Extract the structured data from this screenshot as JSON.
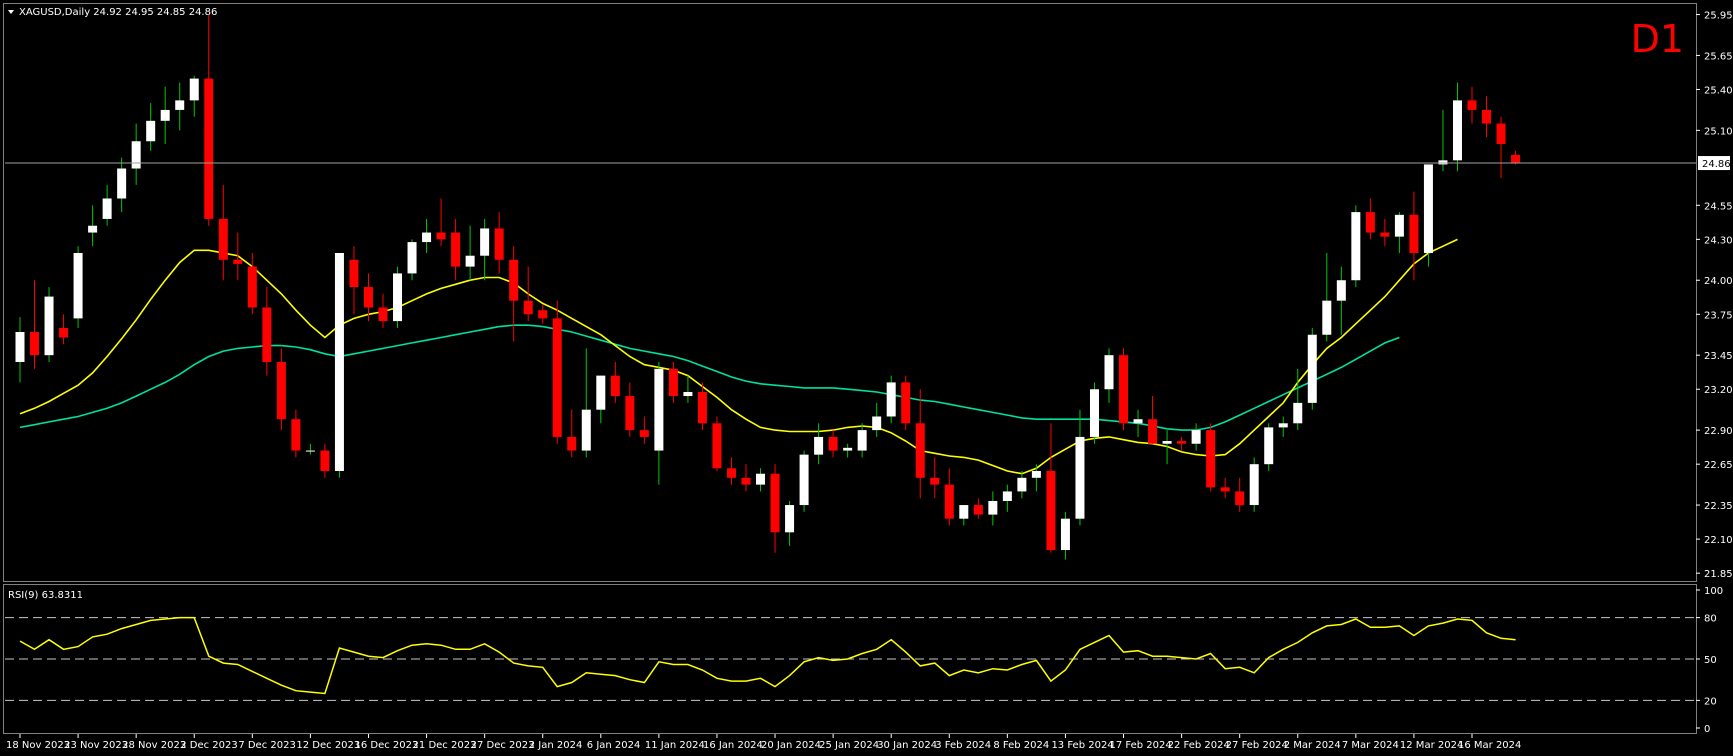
{
  "header": {
    "symbol_line": "XAGUSD,Daily  24.92 24.95 24.85 24.86",
    "timeframe": "D1"
  },
  "price_axis": {
    "ticks": [
      "25.95",
      "25.65",
      "25.40",
      "25.10",
      "24.55",
      "24.30",
      "24.00",
      "23.75",
      "23.45",
      "23.20",
      "22.90",
      "22.65",
      "22.35",
      "22.10",
      "21.85"
    ],
    "tick_values": [
      25.95,
      25.65,
      25.4,
      25.1,
      24.55,
      24.3,
      24.0,
      23.75,
      23.45,
      23.2,
      22.9,
      22.65,
      22.35,
      22.1,
      21.85
    ],
    "current_price": "24.86",
    "current_value": 24.86,
    "range": [
      21.8,
      26.02
    ]
  },
  "rsi": {
    "label": "RSI(9) 63.8311",
    "ticks": [
      "100",
      "80",
      "50",
      "20",
      "0"
    ],
    "tick_values": [
      100,
      80,
      50,
      20,
      0
    ],
    "levels": [
      80,
      50,
      20
    ]
  },
  "time_axis": {
    "labels": [
      "18 Nov 2023",
      "23 Nov 2023",
      "28 Nov 2023",
      "2 Dec 2023",
      "7 Dec 2023",
      "12 Dec 2023",
      "16 Dec 2023",
      "21 Dec 2023",
      "27 Dec 2023",
      "2 Jan 2024",
      "6 Jan 2024",
      "11 Jan 2024",
      "16 Jan 2024",
      "20 Jan 2024",
      "25 Jan 2024",
      "30 Jan 2024",
      "3 Feb 2024",
      "8 Feb 2024",
      "13 Feb 2024",
      "17 Feb 2024",
      "22 Feb 2024",
      "27 Feb 2024",
      "2 Mar 2024",
      "7 Mar 2024",
      "12 Mar 2024",
      "16 Mar 2024"
    ],
    "label_bar_index": [
      0,
      4,
      8,
      12,
      16,
      20,
      24,
      28,
      32,
      36,
      40,
      44,
      48,
      52,
      56,
      60,
      64,
      68,
      72,
      76,
      80,
      84,
      88,
      92,
      96,
      100
    ]
  },
  "colors": {
    "background": "#000000",
    "bull_candle": "#ffffff",
    "bear_candle": "#ff0000",
    "bull_wick": "#00c800",
    "bear_wick": "#ff0000",
    "ma_fast": "#ffff00",
    "ma_slow": "#00e0a0",
    "rsi_line": "#ffff00",
    "grid_dash": "#c8c8c8",
    "axis_text": "#ffffff",
    "timeframe_label": "#ff0000",
    "separator": "#808080"
  },
  "chart_data": {
    "type": "candlestick",
    "ohlc": [
      [
        23.4,
        23.73,
        23.25,
        23.62
      ],
      [
        23.62,
        24.0,
        23.35,
        23.45
      ],
      [
        23.45,
        23.95,
        23.4,
        23.88
      ],
      [
        23.65,
        23.75,
        23.53,
        23.58
      ],
      [
        23.72,
        24.25,
        23.65,
        24.2
      ],
      [
        24.35,
        24.55,
        24.25,
        24.4
      ],
      [
        24.45,
        24.7,
        24.4,
        24.6
      ],
      [
        24.6,
        24.9,
        24.5,
        24.82
      ],
      [
        24.82,
        25.15,
        24.7,
        25.02
      ],
      [
        25.02,
        25.3,
        24.95,
        25.17
      ],
      [
        25.17,
        25.42,
        25.0,
        25.25
      ],
      [
        25.25,
        25.45,
        25.1,
        25.32
      ],
      [
        25.32,
        25.5,
        25.2,
        25.48
      ],
      [
        25.48,
        25.95,
        24.4,
        24.45
      ],
      [
        24.45,
        24.7,
        24.0,
        24.15
      ],
      [
        24.15,
        24.35,
        24.0,
        24.12
      ],
      [
        24.1,
        24.2,
        23.75,
        23.8
      ],
      [
        23.8,
        23.95,
        23.3,
        23.4
      ],
      [
        23.4,
        23.5,
        22.9,
        22.98
      ],
      [
        22.98,
        23.05,
        22.7,
        22.75
      ],
      [
        22.75,
        22.8,
        22.72,
        22.75
      ],
      [
        22.75,
        22.8,
        22.55,
        22.6
      ],
      [
        22.6,
        24.2,
        22.55,
        24.2
      ],
      [
        24.15,
        24.25,
        23.75,
        23.95
      ],
      [
        23.95,
        24.05,
        23.7,
        23.8
      ],
      [
        23.8,
        23.9,
        23.65,
        23.7
      ],
      [
        23.7,
        24.1,
        23.65,
        24.05
      ],
      [
        24.05,
        24.3,
        24.0,
        24.28
      ],
      [
        24.28,
        24.45,
        24.2,
        24.35
      ],
      [
        24.35,
        24.6,
        24.25,
        24.3
      ],
      [
        24.35,
        24.45,
        24.0,
        24.1
      ],
      [
        24.1,
        24.4,
        24.0,
        24.18
      ],
      [
        24.18,
        24.45,
        24.0,
        24.38
      ],
      [
        24.38,
        24.5,
        24.05,
        24.15
      ],
      [
        24.15,
        24.25,
        23.55,
        23.85
      ],
      [
        23.85,
        24.1,
        23.7,
        23.75
      ],
      [
        23.78,
        23.82,
        23.68,
        23.72
      ],
      [
        23.72,
        23.85,
        22.8,
        22.85
      ],
      [
        22.85,
        23.05,
        22.7,
        22.75
      ],
      [
        22.75,
        23.5,
        22.7,
        23.05
      ],
      [
        23.05,
        23.3,
        22.95,
        23.3
      ],
      [
        23.3,
        23.4,
        23.1,
        23.15
      ],
      [
        23.15,
        23.25,
        22.85,
        22.9
      ],
      [
        22.9,
        23.0,
        22.8,
        22.85
      ],
      [
        22.75,
        23.4,
        22.5,
        23.35
      ],
      [
        23.35,
        23.4,
        23.1,
        23.15
      ],
      [
        23.15,
        23.3,
        23.1,
        23.18
      ],
      [
        23.18,
        23.25,
        22.9,
        22.95
      ],
      [
        22.95,
        23.0,
        22.6,
        22.62
      ],
      [
        22.62,
        22.7,
        22.5,
        22.55
      ],
      [
        22.55,
        22.65,
        22.45,
        22.5
      ],
      [
        22.5,
        22.62,
        22.45,
        22.58
      ],
      [
        22.58,
        22.65,
        22.0,
        22.15
      ],
      [
        22.15,
        22.38,
        22.05,
        22.35
      ],
      [
        22.35,
        22.75,
        22.3,
        22.72
      ],
      [
        22.72,
        22.95,
        22.65,
        22.85
      ],
      [
        22.85,
        22.9,
        22.7,
        22.75
      ],
      [
        22.75,
        22.8,
        22.7,
        22.77
      ],
      [
        22.75,
        22.95,
        22.7,
        22.9
      ],
      [
        22.9,
        23.1,
        22.85,
        23.0
      ],
      [
        23.0,
        23.3,
        22.95,
        23.25
      ],
      [
        23.25,
        23.3,
        22.9,
        22.95
      ],
      [
        22.95,
        23.2,
        22.4,
        22.55
      ],
      [
        22.55,
        22.7,
        22.4,
        22.5
      ],
      [
        22.5,
        22.62,
        22.2,
        22.25
      ],
      [
        22.25,
        22.35,
        22.2,
        22.35
      ],
      [
        22.35,
        22.4,
        22.25,
        22.28
      ],
      [
        22.28,
        22.45,
        22.2,
        22.38
      ],
      [
        22.38,
        22.5,
        22.3,
        22.45
      ],
      [
        22.45,
        22.6,
        22.4,
        22.55
      ],
      [
        22.55,
        22.65,
        22.45,
        22.6
      ],
      [
        22.6,
        22.95,
        22.0,
        22.02
      ],
      [
        22.02,
        22.3,
        21.95,
        22.25
      ],
      [
        22.25,
        23.05,
        22.2,
        22.85
      ],
      [
        22.85,
        23.25,
        22.8,
        23.2
      ],
      [
        23.2,
        23.5,
        23.1,
        23.45
      ],
      [
        23.45,
        23.5,
        22.9,
        22.95
      ],
      [
        22.95,
        23.05,
        22.85,
        22.98
      ],
      [
        22.98,
        23.15,
        22.8,
        22.8
      ],
      [
        22.8,
        22.9,
        22.65,
        22.82
      ],
      [
        22.82,
        22.85,
        22.75,
        22.8
      ],
      [
        22.8,
        22.95,
        22.75,
        22.9
      ],
      [
        22.9,
        22.95,
        22.45,
        22.48
      ],
      [
        22.48,
        22.55,
        22.4,
        22.45
      ],
      [
        22.45,
        22.55,
        22.3,
        22.35
      ],
      [
        22.35,
        22.7,
        22.3,
        22.65
      ],
      [
        22.65,
        22.95,
        22.6,
        22.92
      ],
      [
        22.92,
        23.0,
        22.85,
        22.95
      ],
      [
        22.95,
        23.35,
        22.9,
        23.1
      ],
      [
        23.1,
        23.65,
        23.05,
        23.6
      ],
      [
        23.6,
        24.2,
        23.55,
        23.85
      ],
      [
        23.85,
        24.1,
        23.6,
        24.0
      ],
      [
        24.0,
        24.55,
        23.95,
        24.5
      ],
      [
        24.5,
        24.6,
        24.3,
        24.35
      ],
      [
        24.35,
        24.45,
        24.25,
        24.32
      ],
      [
        24.32,
        24.5,
        24.2,
        24.48
      ],
      [
        24.48,
        24.65,
        24.0,
        24.2
      ],
      [
        24.2,
        24.85,
        24.1,
        24.85
      ],
      [
        24.85,
        25.25,
        24.8,
        24.88
      ],
      [
        24.88,
        25.45,
        24.8,
        25.32
      ],
      [
        25.32,
        25.42,
        25.15,
        25.25
      ],
      [
        25.25,
        25.35,
        25.05,
        25.15
      ],
      [
        25.15,
        25.2,
        24.75,
        25.0
      ],
      [
        24.92,
        24.95,
        24.85,
        24.86
      ]
    ],
    "ma_fast": [
      23.02,
      23.06,
      23.11,
      23.17,
      23.23,
      23.32,
      23.44,
      23.57,
      23.71,
      23.86,
      24.0,
      24.13,
      24.22,
      24.22,
      24.2,
      24.18,
      24.1,
      24.0,
      23.9,
      23.78,
      23.67,
      23.58,
      23.67,
      23.72,
      23.75,
      23.77,
      23.8,
      23.85,
      23.9,
      23.94,
      23.97,
      24.0,
      24.02,
      24.02,
      23.98,
      23.9,
      23.83,
      23.78,
      23.72,
      23.66,
      23.6,
      23.52,
      23.44,
      23.38,
      23.36,
      23.34,
      23.3,
      23.22,
      23.14,
      23.05,
      22.98,
      22.92,
      22.9,
      22.89,
      22.89,
      22.89,
      22.9,
      22.92,
      22.93,
      22.92,
      22.88,
      22.82,
      22.75,
      22.73,
      22.71,
      22.7,
      22.68,
      22.64,
      22.6,
      22.58,
      22.62,
      22.7,
      22.76,
      22.82,
      22.84,
      22.85,
      22.83,
      22.81,
      22.8,
      22.78,
      22.74,
      22.72,
      22.71,
      22.72,
      22.8,
      22.9,
      23.0,
      23.1,
      23.25,
      23.38,
      23.5,
      23.58,
      23.68,
      23.78,
      23.88,
      24.0,
      24.12,
      24.2,
      24.25,
      24.3
    ],
    "ma_slow": [
      22.92,
      22.94,
      22.96,
      22.98,
      23.0,
      23.03,
      23.06,
      23.1,
      23.15,
      23.2,
      23.25,
      23.31,
      23.38,
      23.44,
      23.48,
      23.5,
      23.51,
      23.52,
      23.52,
      23.51,
      23.49,
      23.46,
      23.44,
      23.46,
      23.48,
      23.5,
      23.52,
      23.54,
      23.56,
      23.58,
      23.6,
      23.62,
      23.64,
      23.66,
      23.67,
      23.67,
      23.66,
      23.64,
      23.62,
      23.59,
      23.56,
      23.53,
      23.5,
      23.48,
      23.46,
      23.44,
      23.41,
      23.37,
      23.33,
      23.29,
      23.26,
      23.24,
      23.23,
      23.22,
      23.21,
      23.21,
      23.21,
      23.2,
      23.19,
      23.18,
      23.16,
      23.14,
      23.12,
      23.11,
      23.09,
      23.07,
      23.05,
      23.03,
      23.01,
      22.99,
      22.98,
      22.98,
      22.98,
      22.98,
      22.98,
      22.97,
      22.96,
      22.95,
      22.93,
      22.91,
      22.9,
      22.9,
      22.92,
      22.96,
      23.01,
      23.06,
      23.11,
      23.16,
      23.21,
      23.26,
      23.31,
      23.36,
      23.42,
      23.48,
      23.54,
      23.58
    ],
    "rsi": [
      63,
      57,
      64,
      57,
      59,
      66,
      68,
      72,
      75,
      78,
      79,
      80,
      80,
      52,
      47,
      46,
      41,
      36,
      31,
      27,
      26,
      25,
      58,
      55,
      52,
      51,
      56,
      60,
      61,
      60,
      57,
      57,
      61,
      55,
      47,
      45,
      44,
      30,
      33,
      40,
      39,
      38,
      35,
      33,
      48,
      46,
      46,
      42,
      36,
      34,
      34,
      36,
      30,
      38,
      48,
      51,
      49,
      50,
      54,
      57,
      64,
      55,
      45,
      47,
      38,
      42,
      40,
      43,
      42,
      46,
      49,
      34,
      42,
      57,
      62,
      67,
      55,
      56,
      52,
      52,
      51,
      50,
      54,
      43,
      44,
      40,
      51,
      57,
      62,
      69,
      74,
      75,
      79,
      73,
      73,
      74,
      67,
      74,
      76,
      79,
      78,
      69,
      65,
      64
    ]
  }
}
